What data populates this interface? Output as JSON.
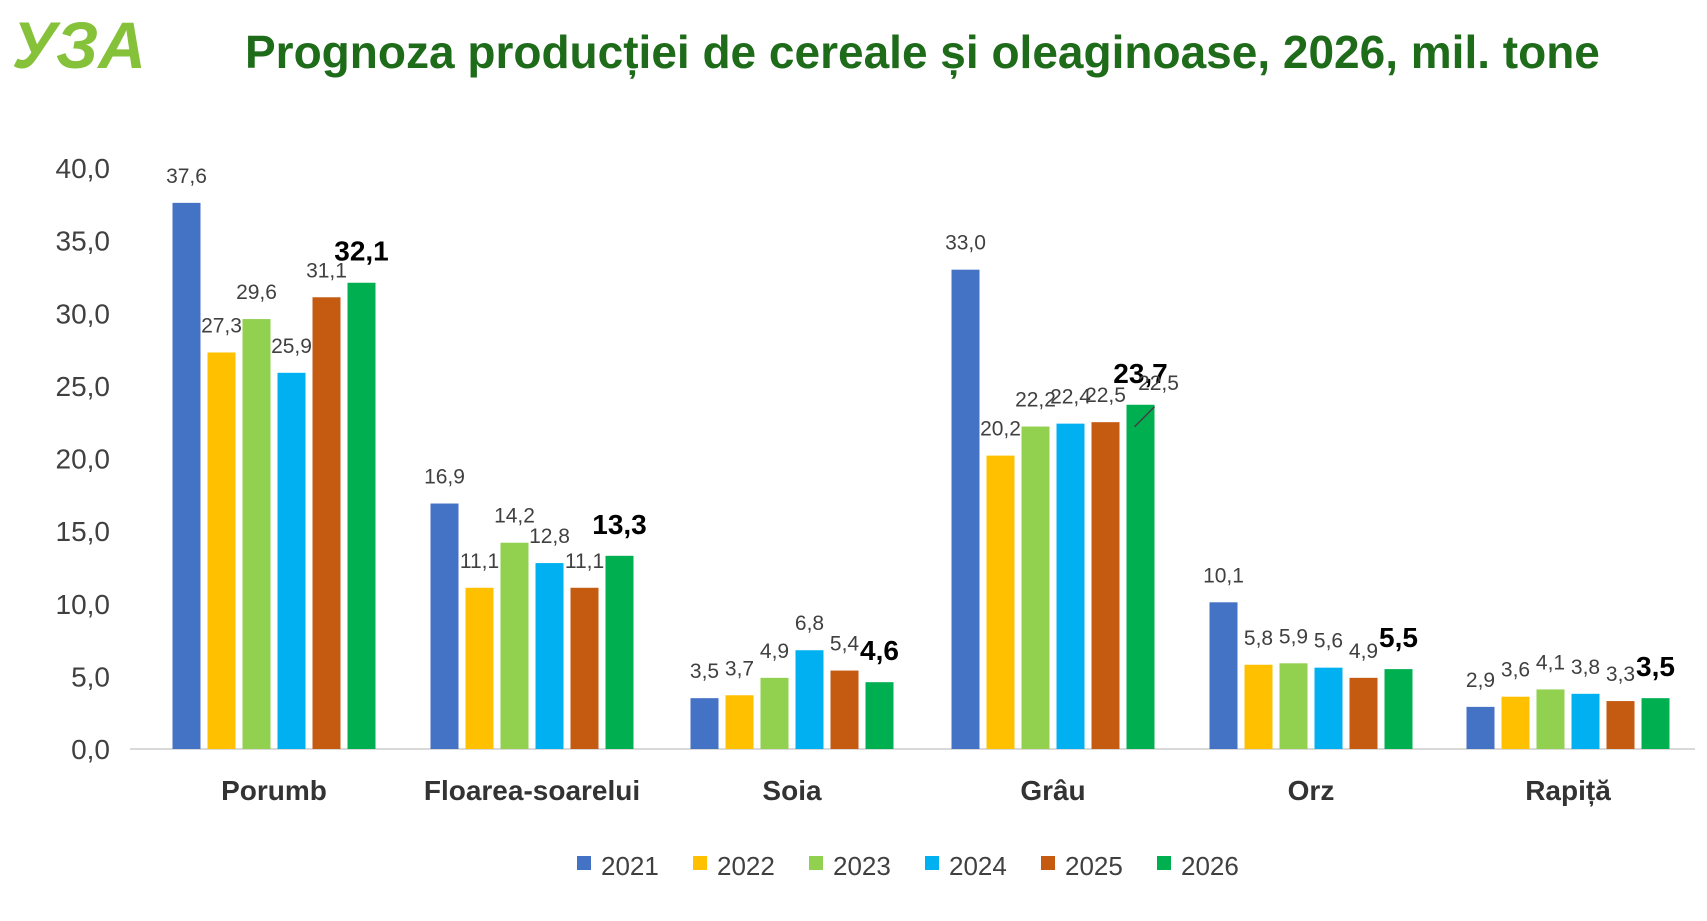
{
  "logo": {
    "text": "УЗА"
  },
  "chart_data": {
    "type": "bar",
    "title": "Prognoza producției de cereale și oleaginoase, 2026, mil. tone",
    "xlabel": "",
    "ylabel": "",
    "ylim": [
      0,
      40
    ],
    "yticks": [
      "0,0",
      "5,0",
      "10,0",
      "15,0",
      "20,0",
      "25,0",
      "30,0",
      "35,0",
      "40,0"
    ],
    "grid": false,
    "legend_position": "bottom",
    "categories": [
      "Porumb",
      "Floarea-soarelui",
      "Soia",
      "Grâu",
      "Orz",
      "Rapiță"
    ],
    "series": [
      {
        "name": "2021",
        "color": "#4472c4",
        "values": [
          37.6,
          16.9,
          3.5,
          33.0,
          10.1,
          2.9
        ],
        "labels": [
          "37,6",
          "16,9",
          "3,5",
          "33,0",
          "10,1",
          "2,9"
        ]
      },
      {
        "name": "2022",
        "color": "#ffc000",
        "values": [
          27.3,
          11.1,
          3.7,
          20.2,
          5.8,
          3.6
        ],
        "labels": [
          "27,3",
          "11,1",
          "3,7",
          "20,2",
          "5,8",
          "3,6"
        ]
      },
      {
        "name": "2023",
        "color": "#92d050",
        "values": [
          29.6,
          14.2,
          4.9,
          22.2,
          5.9,
          4.1
        ],
        "labels": [
          "29,6",
          "14,2",
          "4,9",
          "22,2",
          "5,9",
          "4,1"
        ]
      },
      {
        "name": "2024",
        "color": "#00b0f0",
        "values": [
          25.9,
          12.8,
          6.8,
          22.4,
          5.6,
          3.8
        ],
        "labels": [
          "25,9",
          "12,8",
          "6,8",
          "22,4",
          "5,6",
          "3,8"
        ]
      },
      {
        "name": "2025",
        "color": "#c55a11",
        "values": [
          31.1,
          11.1,
          5.4,
          22.5,
          4.9,
          3.3
        ],
        "labels": [
          "31,1",
          "11,1",
          "5,4",
          "22,5",
          "4,9",
          "3,3"
        ]
      },
      {
        "name": "2026",
        "color": "#00b050",
        "values": [
          32.1,
          13.3,
          4.6,
          23.7,
          5.5,
          3.5
        ],
        "labels": [
          "32,1",
          "13,3",
          "4,6",
          "23,7",
          "5,5",
          "3,5"
        ],
        "bold_labels": true
      }
    ],
    "annotations": [
      {
        "category": "Grâu",
        "series": "2026",
        "text": "22,5"
      }
    ]
  }
}
